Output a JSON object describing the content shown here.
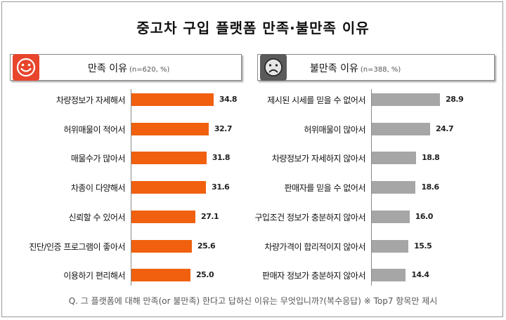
{
  "title": "중고차 구입 플랫폼 만족·불만족 이유",
  "footnote": "Q. 그 플랫폼에 대해 만족(or 불만족) 한다고 답하신 이유는 무엇입니까?(복수응답) ※ Top7 항목만 제시",
  "colors": {
    "satisfied_bar": "#f0600f",
    "dissatisfied_bar": "#a6a6a6",
    "satisfied_icon_bg": "#e8452c",
    "dissatisfied_icon_bg": "#5a5a5a"
  },
  "icons": {
    "satisfied": "smiley-face-icon",
    "dissatisfied": "frowning-face-icon"
  },
  "chart_data": [
    {
      "type": "bar",
      "orientation": "horizontal",
      "title": "만족 이유",
      "subtitle": "(n=620, %)",
      "categories": [
        "차량정보가 자세해서",
        "허위매물이 적어서",
        "매물수가 많아서",
        "차종이 다양해서",
        "신뢰할 수 있어서",
        "진단/인증 프로그램이 좋아서",
        "이용하기 편리해서"
      ],
      "values": [
        34.8,
        32.7,
        31.8,
        31.6,
        27.1,
        25.6,
        25.0
      ],
      "value_labels": [
        "34.8",
        "32.7",
        "31.8",
        "31.6",
        "27.1",
        "25.6",
        "25.0"
      ],
      "xlim": [
        0,
        35
      ]
    },
    {
      "type": "bar",
      "orientation": "horizontal",
      "title": "불만족 이유",
      "subtitle": "(n=388, %)",
      "categories": [
        "제시된 시세를 믿을 수 없어서",
        "허위매물이 많아서",
        "차량정보가 자세하지 않아서",
        "판매자를 믿을 수 없어서",
        "구입조건 정보가 충분하지 않아서",
        "차량가격이 합리적이지 않아서",
        "판매자 정보가 충분하지 않아서"
      ],
      "values": [
        28.9,
        24.7,
        18.8,
        18.6,
        16.0,
        15.5,
        14.4
      ],
      "value_labels": [
        "28.9",
        "24.7",
        "18.8",
        "18.6",
        "16.0",
        "15.5",
        "14.4"
      ],
      "xlim": [
        0,
        35
      ]
    }
  ]
}
